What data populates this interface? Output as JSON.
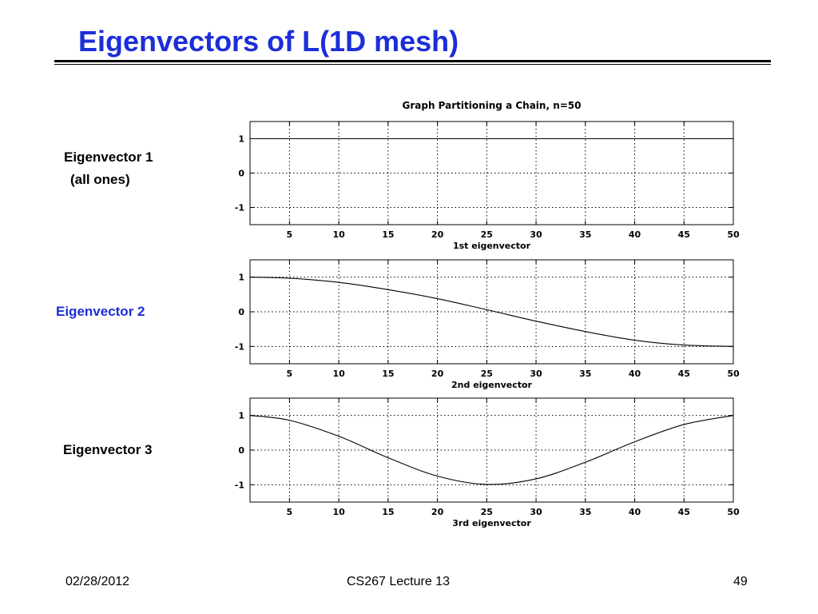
{
  "slide": {
    "title": "Eigenvectors of L(1D mesh)",
    "title_color": "#1c2ed8",
    "accent_color": "#1c2ed8"
  },
  "side_labels": {
    "ev1_line1": "Eigenvector 1",
    "ev1_line2": "(all ones)",
    "ev2": "Eigenvector 2",
    "ev3": "Eigenvector 3"
  },
  "footer": {
    "date": "02/28/2012",
    "course": "CS267 Lecture 13",
    "page": "49"
  },
  "chart_data": [
    {
      "type": "line",
      "title": "Graph Partitioning a Chain, n=50",
      "xlabel": "1st eigenvector",
      "ylabel": "",
      "xlim": [
        1,
        50
      ],
      "ylim": [
        -1.5,
        1.5
      ],
      "x_ticks": [
        5,
        10,
        15,
        20,
        25,
        30,
        35,
        40,
        45,
        50
      ],
      "y_ticks": [
        1,
        0,
        -1
      ],
      "grid": true,
      "series": [
        {
          "x": [
            1,
            50
          ],
          "y": [
            1,
            1
          ]
        }
      ]
    },
    {
      "type": "line",
      "title": "",
      "xlabel": "2nd eigenvector",
      "ylabel": "",
      "xlim": [
        1,
        50
      ],
      "ylim": [
        -1.5,
        1.5
      ],
      "x_ticks": [
        5,
        10,
        15,
        20,
        25,
        30,
        35,
        40,
        45,
        50
      ],
      "y_ticks": [
        1,
        0,
        -1
      ],
      "grid": true,
      "series": [
        {
          "x": [
            1,
            5,
            10,
            15,
            20,
            25,
            30,
            35,
            40,
            45,
            50
          ],
          "y": [
            1.0,
            0.97,
            0.85,
            0.64,
            0.38,
            0.06,
            -0.27,
            -0.57,
            -0.82,
            -0.96,
            -1.0
          ]
        }
      ]
    },
    {
      "type": "line",
      "title": "",
      "xlabel": "3rd eigenvector",
      "ylabel": "",
      "xlim": [
        1,
        50
      ],
      "ylim": [
        -1.5,
        1.5
      ],
      "x_ticks": [
        5,
        10,
        15,
        20,
        25,
        30,
        35,
        40,
        45,
        50
      ],
      "y_ticks": [
        1,
        0,
        -1
      ],
      "grid": true,
      "series": [
        {
          "x": [
            1,
            5,
            10,
            15,
            20,
            25,
            30,
            35,
            40,
            45,
            50
          ],
          "y": [
            1.0,
            0.86,
            0.4,
            -0.22,
            -0.75,
            -0.99,
            -0.83,
            -0.35,
            0.24,
            0.74,
            1.0
          ]
        }
      ]
    }
  ]
}
